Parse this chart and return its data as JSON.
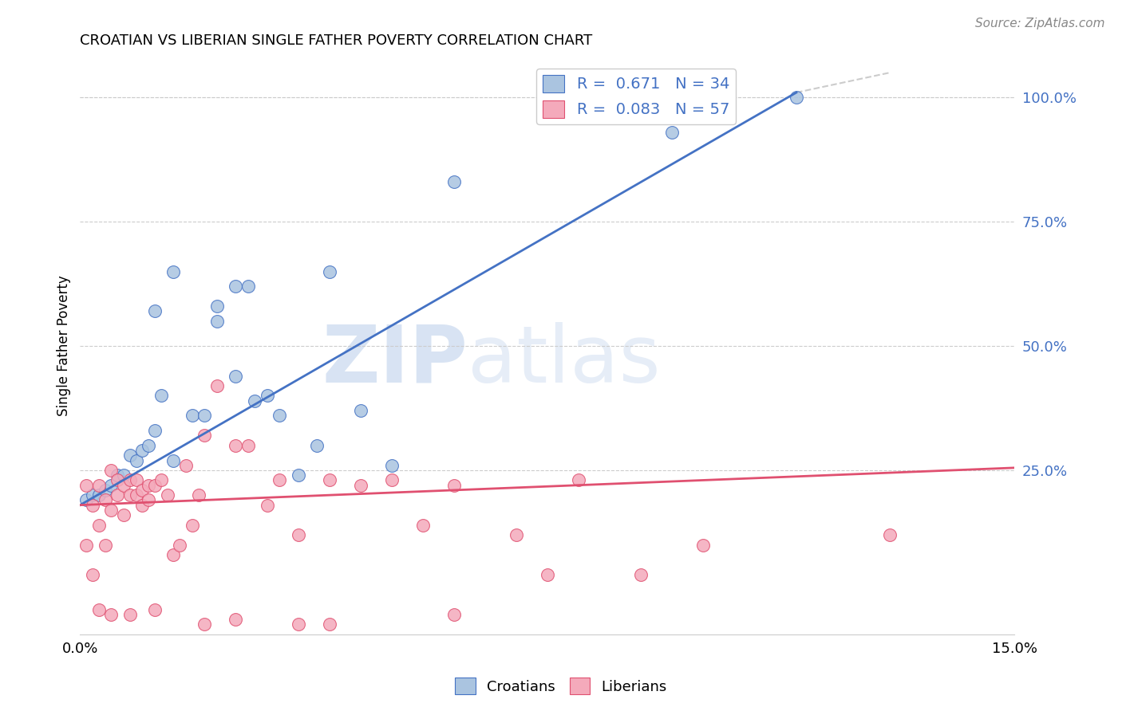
{
  "title": "CROATIAN VS LIBERIAN SINGLE FATHER POVERTY CORRELATION CHART",
  "source": "Source: ZipAtlas.com",
  "ylabel": "Single Father Poverty",
  "xlim": [
    0.0,
    0.15
  ],
  "ylim": [
    -0.08,
    1.08
  ],
  "xtick_positions": [
    0.0,
    0.05,
    0.1,
    0.15
  ],
  "xtick_labels": [
    "0.0%",
    "",
    "",
    "15.0%"
  ],
  "ytick_vals_right": [
    1.0,
    0.75,
    0.5,
    0.25
  ],
  "ytick_labels_right": [
    "100.0%",
    "75.0%",
    "50.0%",
    "25.0%"
  ],
  "croatian_R": 0.671,
  "croatian_N": 34,
  "liberian_R": 0.083,
  "liberian_N": 57,
  "croatian_color": "#aac4e0",
  "liberian_color": "#f4aabb",
  "trendline_croatian_color": "#4472c4",
  "trendline_liberian_color": "#e05070",
  "background_color": "#ffffff",
  "grid_color": "#cccccc",
  "watermark_zip": "ZIP",
  "watermark_atlas": "atlas",
  "trendline_c_x0": 0.0,
  "trendline_c_y0": 0.18,
  "trendline_c_x1": 0.115,
  "trendline_c_y1": 1.01,
  "trendline_l_x0": 0.0,
  "trendline_l_y0": 0.18,
  "trendline_l_x1": 0.15,
  "trendline_l_y1": 0.255,
  "croatian_x": [
    0.001,
    0.002,
    0.003,
    0.004,
    0.005,
    0.006,
    0.007,
    0.008,
    0.009,
    0.01,
    0.011,
    0.012,
    0.013,
    0.015,
    0.018,
    0.02,
    0.022,
    0.025,
    0.027,
    0.03,
    0.032,
    0.035,
    0.038,
    0.04,
    0.045,
    0.05,
    0.06,
    0.095,
    0.115,
    0.012,
    0.015,
    0.022,
    0.025,
    0.028
  ],
  "croatian_y": [
    0.19,
    0.2,
    0.2,
    0.21,
    0.22,
    0.24,
    0.24,
    0.28,
    0.27,
    0.29,
    0.3,
    0.33,
    0.4,
    0.27,
    0.36,
    0.36,
    0.58,
    0.62,
    0.62,
    0.4,
    0.36,
    0.24,
    0.3,
    0.65,
    0.37,
    0.26,
    0.83,
    0.93,
    1.0,
    0.57,
    0.65,
    0.55,
    0.44,
    0.39
  ],
  "liberian_x": [
    0.001,
    0.001,
    0.002,
    0.002,
    0.003,
    0.003,
    0.004,
    0.004,
    0.005,
    0.005,
    0.006,
    0.006,
    0.007,
    0.007,
    0.008,
    0.008,
    0.009,
    0.009,
    0.01,
    0.01,
    0.011,
    0.011,
    0.012,
    0.013,
    0.014,
    0.015,
    0.016,
    0.017,
    0.018,
    0.019,
    0.02,
    0.022,
    0.025,
    0.027,
    0.03,
    0.032,
    0.035,
    0.04,
    0.045,
    0.05,
    0.055,
    0.06,
    0.07,
    0.075,
    0.08,
    0.09,
    0.1,
    0.13,
    0.003,
    0.005,
    0.008,
    0.012,
    0.02,
    0.025,
    0.035,
    0.04,
    0.06
  ],
  "liberian_y": [
    0.1,
    0.22,
    0.18,
    0.04,
    0.14,
    0.22,
    0.1,
    0.19,
    0.17,
    0.25,
    0.2,
    0.23,
    0.16,
    0.22,
    0.2,
    0.23,
    0.2,
    0.23,
    0.18,
    0.21,
    0.19,
    0.22,
    0.22,
    0.23,
    0.2,
    0.08,
    0.1,
    0.26,
    0.14,
    0.2,
    0.32,
    0.42,
    0.3,
    0.3,
    0.18,
    0.23,
    0.12,
    0.23,
    0.22,
    0.23,
    0.14,
    0.22,
    0.12,
    0.04,
    0.23,
    0.04,
    0.1,
    0.12,
    -0.03,
    -0.04,
    -0.04,
    -0.03,
    -0.06,
    -0.05,
    -0.06,
    -0.06,
    -0.04
  ]
}
